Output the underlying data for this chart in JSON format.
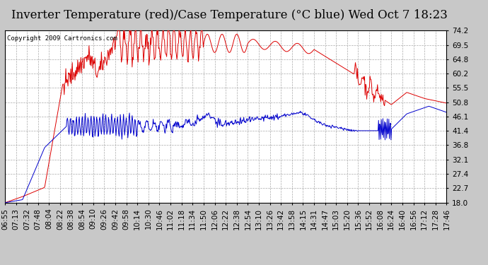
{
  "title": "Inverter Temperature (red)/Case Temperature (°C blue) Wed Oct 7 18:23",
  "copyright": "Copyright 2009 Cartronics.com",
  "background_color": "#c8c8c8",
  "plot_background": "#ffffff",
  "grid_color": "#aaaaaa",
  "ylim": [
    18.0,
    74.2
  ],
  "yticks": [
    18.0,
    22.7,
    27.4,
    32.1,
    36.8,
    41.4,
    46.1,
    50.8,
    55.5,
    60.2,
    64.8,
    69.5,
    74.2
  ],
  "red_color": "#dd0000",
  "blue_color": "#0000cc",
  "title_fontsize": 12,
  "tick_fontsize": 7.5,
  "copyright_fontsize": 6.5,
  "xtick_labels": [
    "06:55",
    "07:13",
    "07:32",
    "07:48",
    "08:04",
    "08:22",
    "08:38",
    "08:54",
    "09:10",
    "09:26",
    "09:42",
    "09:58",
    "10:14",
    "10:30",
    "10:46",
    "11:02",
    "11:18",
    "11:34",
    "11:50",
    "12:06",
    "12:22",
    "12:38",
    "12:54",
    "13:10",
    "13:26",
    "13:42",
    "13:58",
    "14:15",
    "14:31",
    "14:47",
    "15:03",
    "15:20",
    "15:36",
    "15:52",
    "16:08",
    "16:24",
    "16:40",
    "16:56",
    "17:12",
    "17:28",
    "17:46"
  ]
}
